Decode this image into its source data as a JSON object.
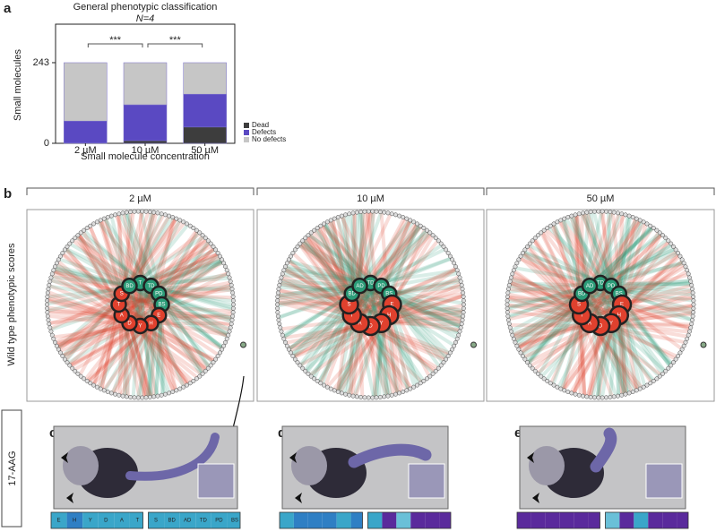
{
  "panel_labels": [
    "a",
    "b",
    "c",
    "d",
    "e"
  ],
  "chart_data": {
    "type": "bar",
    "stacked": true,
    "title": "General phenotypic classification",
    "subtitle": "N=4",
    "ylabel": "Small molecules",
    "xlabel": "Small molecule concentration",
    "categories": [
      "2 µM",
      "10 µM",
      "50 µM"
    ],
    "series": [
      {
        "name": "Dead",
        "color": "#3d3d3d",
        "values": [
          1,
          8,
          49
        ]
      },
      {
        "name": "Defects",
        "color": "#5a49c2",
        "values": [
          66,
          108,
          99
        ]
      },
      {
        "name": "No defects",
        "color": "#c6c6c6",
        "values": [
          176,
          127,
          95
        ]
      }
    ],
    "ylim": [
      0,
      359
    ],
    "yticks": [
      0,
      243
    ],
    "annotations": [
      "***",
      "***"
    ],
    "legend": "lower-right"
  },
  "circos": {
    "ylabel": "Wild type phenotypic scores",
    "panels": [
      {
        "title": "2 µM",
        "nodes": [
          {
            "label": "T",
            "color": "#2c9c78"
          },
          {
            "label": "TD",
            "color": "#2c9c78"
          },
          {
            "label": "PD",
            "color": "#2c9c78"
          },
          {
            "label": "BS",
            "color": "#2c9c78"
          },
          {
            "label": "E",
            "color": "#e0412e"
          },
          {
            "label": "H",
            "color": "#e0412e"
          },
          {
            "label": "Y",
            "color": "#e0412e"
          },
          {
            "label": "D",
            "color": "#e0412e"
          },
          {
            "label": "A",
            "color": "#e0412e"
          },
          {
            "label": "T",
            "color": "#e0412e"
          },
          {
            "label": "S",
            "color": "#e0412e"
          },
          {
            "label": "BD",
            "color": "#2c9c78"
          }
        ]
      },
      {
        "title": "10 µM",
        "nodes": [
          {
            "label": "TD",
            "color": "#2c9c78"
          },
          {
            "label": "PD",
            "color": "#2c9c78"
          },
          {
            "label": "BS",
            "color": "#2c9c78"
          },
          {
            "label": "E",
            "color": "#e0412e"
          },
          {
            "label": "H",
            "color": "#e0412e"
          },
          {
            "label": "Y",
            "color": "#e0412e"
          },
          {
            "label": "D",
            "color": "#e0412e"
          },
          {
            "label": "A",
            "color": "#e0412e"
          },
          {
            "label": "T",
            "color": "#e0412e"
          },
          {
            "label": "S",
            "color": "#e0412e"
          },
          {
            "label": "BD",
            "color": "#2c9c78"
          },
          {
            "label": "AD",
            "color": "#2c9c78"
          }
        ]
      },
      {
        "title": "50 µM",
        "nodes": [
          {
            "label": "TD",
            "color": "#2c9c78"
          },
          {
            "label": "PD",
            "color": "#2c9c78"
          },
          {
            "label": "BS",
            "color": "#2c9c78"
          },
          {
            "label": "E",
            "color": "#e0412e"
          },
          {
            "label": "H",
            "color": "#e0412e"
          },
          {
            "label": "Y",
            "color": "#e0412e"
          },
          {
            "label": "D",
            "color": "#e0412e"
          },
          {
            "label": "A",
            "color": "#e0412e"
          },
          {
            "label": "T",
            "color": "#e0412e"
          },
          {
            "label": "S",
            "color": "#e0412e"
          },
          {
            "label": "BD",
            "color": "#2c9c78"
          },
          {
            "label": "AD",
            "color": "#2c9c78"
          }
        ]
      }
    ]
  },
  "embryos": {
    "compound": "17-AAG",
    "panels": [
      {
        "cells": [
          {
            "label": "E",
            "color": "#3aa6c9"
          },
          {
            "label": "H",
            "color": "#2f7fc4"
          },
          {
            "label": "Y",
            "color": "#3aa6c9"
          },
          {
            "label": "D",
            "color": "#3aa6c9"
          },
          {
            "label": "A",
            "color": "#3aa6c9"
          },
          {
            "label": "T",
            "color": "#3aa6c9"
          },
          {
            "label": "S",
            "color": "#3aa6c9"
          },
          {
            "label": "BD",
            "color": "#3aa6c9"
          },
          {
            "label": "AD",
            "color": "#3aa6c9"
          },
          {
            "label": "TD",
            "color": "#3aa6c9"
          },
          {
            "label": "PD",
            "color": "#3aa6c9"
          },
          {
            "label": "BS",
            "color": "#3aa6c9"
          }
        ]
      },
      {
        "cells": [
          {
            "color": "#3aa6c9"
          },
          {
            "color": "#2f7fc4"
          },
          {
            "color": "#2f7fc4"
          },
          {
            "color": "#2f7fc4"
          },
          {
            "color": "#3aa6c9"
          },
          {
            "color": "#2f7fc4"
          },
          {
            "color": "#3aa6c9"
          },
          {
            "color": "#5a2a9c"
          },
          {
            "color": "#6ac0d8"
          },
          {
            "color": "#5a2a9c"
          },
          {
            "color": "#5a2a9c"
          },
          {
            "color": "#5a2a9c"
          }
        ]
      },
      {
        "cells": [
          {
            "color": "#5a2a9c"
          },
          {
            "color": "#5a2a9c"
          },
          {
            "color": "#5a2a9c"
          },
          {
            "color": "#5a2a9c"
          },
          {
            "color": "#5a2a9c"
          },
          {
            "color": "#5a2a9c"
          },
          {
            "color": "#6ac0d8"
          },
          {
            "color": "#5a2a9c"
          },
          {
            "color": "#3aa6c9"
          },
          {
            "color": "#5a2a9c"
          },
          {
            "color": "#5a2a9c"
          },
          {
            "color": "#5a2a9c"
          }
        ]
      }
    ]
  }
}
